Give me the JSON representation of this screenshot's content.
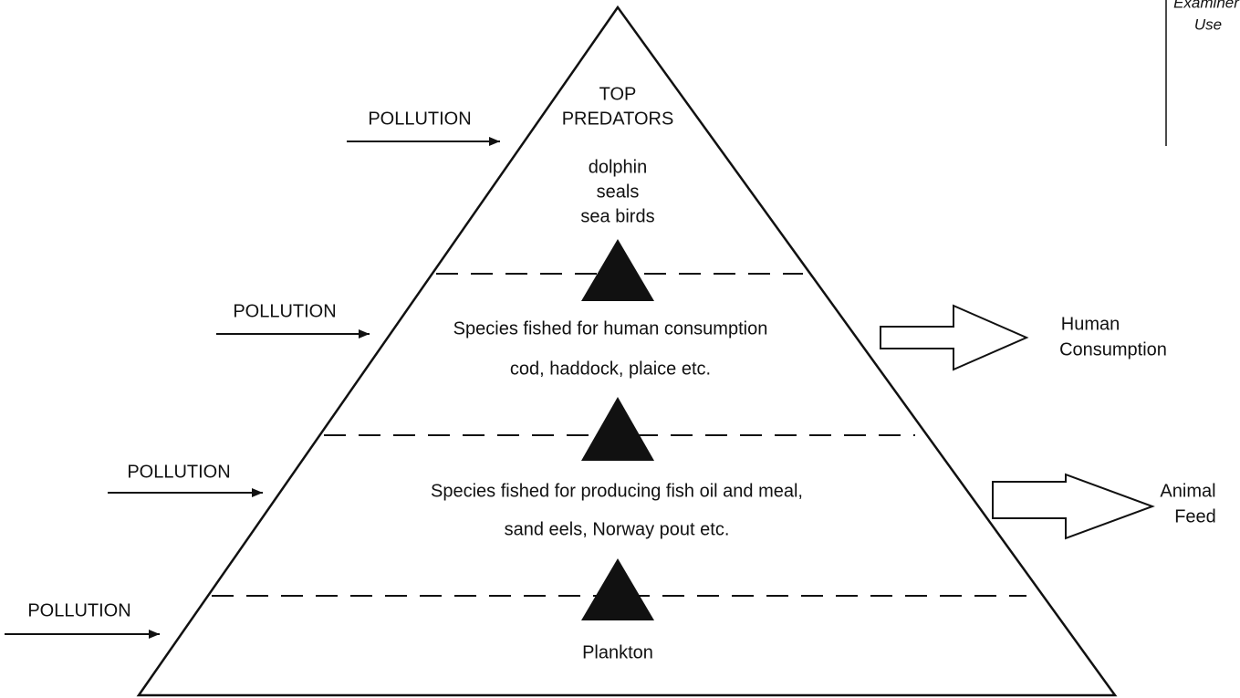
{
  "margin": {
    "lines": [
      "Examiner",
      "Use"
    ]
  },
  "levels": [
    {
      "lines": [
        "TOP",
        "PREDATORS",
        "dolphin",
        "seals",
        "sea birds"
      ]
    },
    {
      "lines": [
        "Species fished for human consumption",
        "cod, haddock, plaice etc."
      ]
    },
    {
      "lines": [
        "Species fished for producing fish oil and meal,",
        "sand eels, Norway pout etc."
      ]
    },
    {
      "lines": [
        "Plankton"
      ]
    }
  ],
  "pollution": [
    "POLLUTION",
    "POLLUTION",
    "POLLUTION",
    "POLLUTION"
  ],
  "outputs": [
    {
      "lines": [
        "Human",
        "Consumption"
      ]
    },
    {
      "lines": [
        "Animal",
        "Feed"
      ]
    }
  ]
}
